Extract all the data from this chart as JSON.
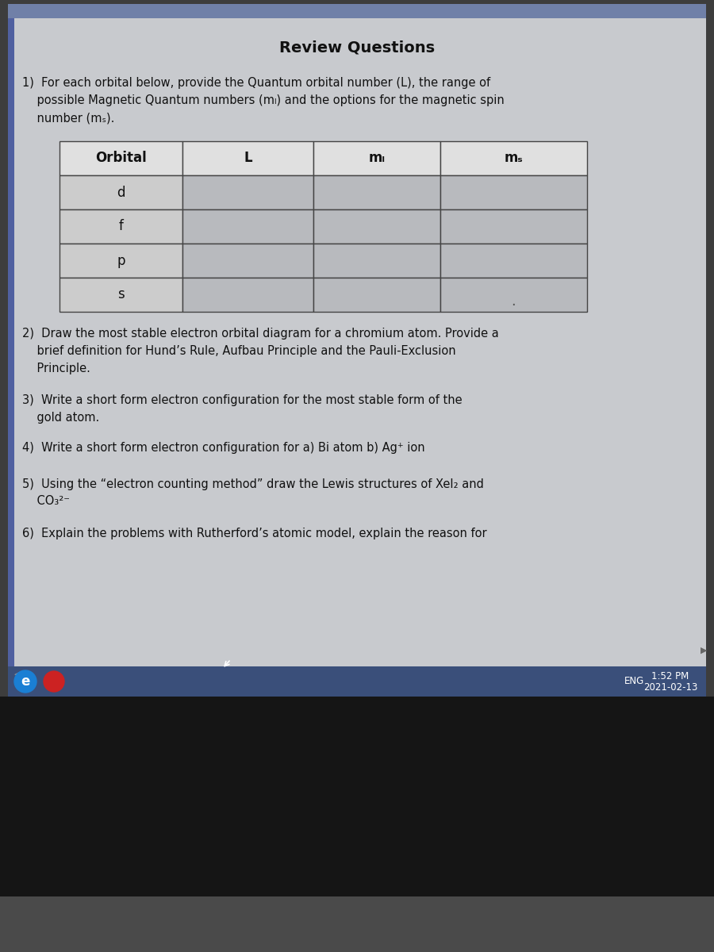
{
  "title": "Review Questions",
  "title_fontsize": 14,
  "body_fontsize": 10.5,
  "q1_line1": "1)  For each orbital below, provide the Quantum orbital number (L), the range of",
  "q1_line2": "    possible Magnetic Quantum numbers (mₗ) and the options for the magnetic spin",
  "q1_line3": "    number (mₛ).",
  "table_headers": [
    "Orbital",
    "L",
    "mₗ",
    "mₛ"
  ],
  "table_rows": [
    "d",
    "f",
    "p",
    "s"
  ],
  "q2_line1": "2)  Draw the most stable electron orbital diagram for a chromium atom. Provide a",
  "q2_line2": "    brief definition for Hund’s Rule, Aufbau Principle and the Pauli-Exclusion",
  "q2_line3": "    Principle.",
  "q3_line1": "3)  Write a short form electron configuration for the most stable form of the",
  "q3_line2": "    gold atom.",
  "q4_line1": "4)  Write a short form electron configuration for a) Bi atom b) Ag⁺ ion",
  "q5_line1": "5)  Using the “electron counting method” draw the Lewis structures of XeI₂ and",
  "q5_line2": "    CO₃²⁻",
  "q6_line1": "6)  Explain the problems with Rutherford’s atomic model, explain the reason for",
  "time_text": "1:52 PM",
  "date_text": "2021-02-13",
  "bg_outer_color": "#3d3d3d",
  "bg_top_bar_color": "#7080a8",
  "bg_left_strip_color": "#5060a0",
  "bg_content_color": "#c8cace",
  "table_header_bg": "#e0e0e0",
  "table_data_col0_bg": "#cccccc",
  "table_data_other_bg": "#b8babe",
  "table_border_color": "#444444",
  "taskbar_bg": "#3a4f7a",
  "taskbar_text": "#ffffff",
  "bottom_dark": "#151515",
  "bottom_strip": "#4a4a4a",
  "right_arrow_color": "#666666",
  "text_color": "#111111"
}
